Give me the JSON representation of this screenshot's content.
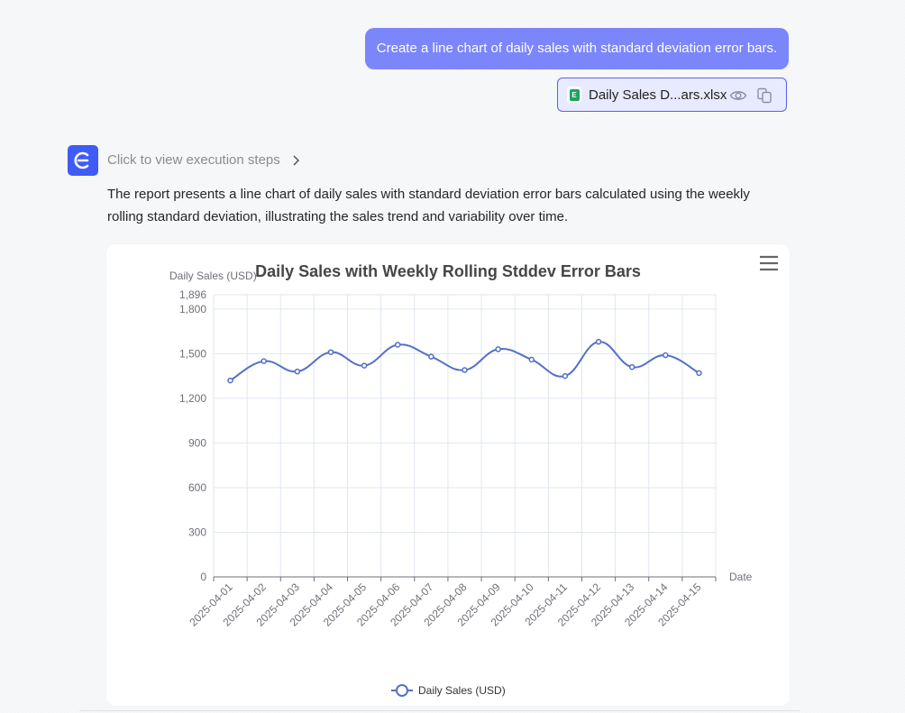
{
  "user_message": "Create a line chart of daily sales with standard deviation error bars.",
  "attachment": {
    "file_name": "Daily Sales D...ars.xlsx",
    "file_icon": "excel-icon",
    "actions": [
      "eye-icon",
      "copy-icon"
    ]
  },
  "assistant": {
    "avatar_icon": "e-logo-icon",
    "steps_link": "Click to view execution steps",
    "report_text": "The report presents a line chart of daily sales with standard deviation error bars calculated using the weekly rolling standard deviation, illustrating the sales trend and variability over time."
  },
  "colors": {
    "accent": "#3f5cf6",
    "user_bubble": "#7b86fb",
    "series": "#5470c6"
  },
  "chart_data": {
    "type": "line",
    "title": "Daily Sales with Weekly Rolling Stddev Error Bars",
    "ylabel": "Daily Sales (USD)",
    "xlabel": "Date",
    "categories": [
      "2025-04-01",
      "2025-04-02",
      "2025-04-03",
      "2025-04-04",
      "2025-04-05",
      "2025-04-06",
      "2025-04-07",
      "2025-04-08",
      "2025-04-09",
      "2025-04-10",
      "2025-04-11",
      "2025-04-12",
      "2025-04-13",
      "2025-04-14",
      "2025-04-15"
    ],
    "series": [
      {
        "name": "Daily Sales (USD)",
        "values": [
          1320,
          1450,
          1380,
          1510,
          1420,
          1560,
          1480,
          1390,
          1530,
          1460,
          1350,
          1580,
          1410,
          1490,
          1370
        ]
      }
    ],
    "ylim": [
      0,
      1896
    ],
    "y_ticks": [
      "0",
      "300",
      "600",
      "900",
      "1,200",
      "1,500",
      "1,800",
      "1,896"
    ],
    "y_tick_values": [
      0,
      300,
      600,
      900,
      1200,
      1500,
      1800,
      1896
    ],
    "grid": true,
    "smooth": true,
    "legend_position": "bottom-center",
    "menu_icon": "hamburger-menu-icon"
  }
}
